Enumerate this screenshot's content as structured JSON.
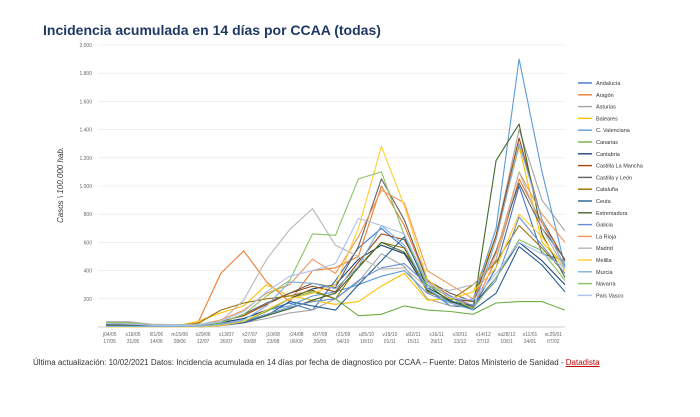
{
  "title": "Incidencia acumulada en 14 días por CCAA (todas)",
  "footnote": {
    "text": "Última actualización: 10/02/2021 Datos: Incidencia acumulada en 14 días por fecha de diagnostico por CCAA – Fuente: Datos Ministerio de Sanidad -",
    "source": "Datadista"
  },
  "chart_data": {
    "type": "line",
    "ylabel": "Casos \\ 100.000 hab.",
    "ylim": [
      0,
      2000
    ],
    "yticks": [
      "",
      "200",
      "400",
      "600",
      "800",
      "1.000",
      "1.200",
      "1.400",
      "1.600",
      "1.800",
      "2.000"
    ],
    "x_top": [
      "j04/05",
      "x18/05",
      "l01/06",
      "m15/06",
      "x29/06",
      "x13/07",
      "x27/07",
      "j10/08",
      "r24/08",
      "s07/09",
      "r21/09",
      "u05/10",
      "v19/10",
      "u02/11",
      "x16/11",
      "v30/11",
      "x14/12",
      "xa28/12",
      "x11/01",
      "xc25/01"
    ],
    "x_bottom": [
      "17/05",
      "31/05",
      "14/06",
      "28/06",
      "12/07",
      "26/07",
      "09/08",
      "23/08",
      "06/09",
      "20/09",
      "04/10",
      "18/10",
      "01/11",
      "15/11",
      "29/11",
      "13/12",
      "27/12",
      "10/01",
      "24/01",
      "07/02"
    ],
    "legend_position": "right",
    "series": [
      {
        "name": "Andalucía",
        "color": "#4472c4",
        "values": [
          22,
          22,
          10,
          8,
          14,
          30,
          60,
          120,
          170,
          120,
          330,
          560,
          700,
          560,
          270,
          150,
          140,
          420,
          1000,
          520,
          470
        ]
      },
      {
        "name": "Aragón",
        "color": "#ed7d31",
        "values": [
          24,
          32,
          10,
          10,
          28,
          380,
          540,
          320,
          180,
          400,
          420,
          500,
          1000,
          720,
          330,
          220,
          140,
          480,
          1050,
          740,
          430
        ]
      },
      {
        "name": "Asturias",
        "color": "#a5a5a5",
        "values": [
          12,
          10,
          5,
          4,
          5,
          20,
          30,
          60,
          100,
          120,
          200,
          320,
          520,
          430,
          200,
          150,
          160,
          650,
          1400,
          900,
          680
        ]
      },
      {
        "name": "Baleares",
        "color": "#ffc000",
        "values": [
          12,
          10,
          5,
          5,
          40,
          100,
          150,
          300,
          220,
          190,
          160,
          180,
          290,
          380,
          190,
          200,
          250,
          640,
          1280,
          600,
          440
        ]
      },
      {
        "name": "C. Valenciana",
        "color": "#5b9bd5",
        "values": [
          10,
          10,
          5,
          4,
          8,
          30,
          60,
          120,
          150,
          220,
          250,
          300,
          360,
          400,
          240,
          170,
          200,
          700,
          1900,
          1100,
          430
        ]
      },
      {
        "name": "Canarias",
        "color": "#70ad47",
        "values": [
          8,
          6,
          4,
          3,
          5,
          20,
          40,
          110,
          200,
          250,
          200,
          80,
          90,
          150,
          120,
          110,
          90,
          170,
          180,
          180,
          120
        ]
      },
      {
        "name": "Cantabria",
        "color": "#264478",
        "values": [
          14,
          12,
          6,
          5,
          8,
          30,
          60,
          120,
          200,
          270,
          300,
          480,
          580,
          520,
          260,
          180,
          150,
          350,
          600,
          470,
          300
        ]
      },
      {
        "name": "Castilla La Mancha",
        "color": "#9e480e",
        "values": [
          30,
          28,
          14,
          10,
          14,
          40,
          80,
          160,
          240,
          290,
          250,
          460,
          660,
          620,
          320,
          200,
          180,
          650,
          1340,
          760,
          470
        ]
      },
      {
        "name": "Castilla y León",
        "color": "#636363",
        "values": [
          30,
          28,
          14,
          10,
          14,
          30,
          90,
          170,
          240,
          310,
          280,
          570,
          1050,
          760,
          330,
          240,
          180,
          540,
          1020,
          700,
          480
        ]
      },
      {
        "name": "Cataluña",
        "color": "#997300",
        "values": [
          32,
          30,
          16,
          12,
          24,
          120,
          170,
          200,
          220,
          260,
          200,
          430,
          600,
          560,
          250,
          190,
          300,
          460,
          720,
          560,
          380
        ]
      },
      {
        "name": "Ceuta",
        "color": "#255e91",
        "values": [
          0,
          0,
          0,
          0,
          0,
          10,
          30,
          80,
          180,
          150,
          120,
          300,
          470,
          640,
          280,
          190,
          120,
          240,
          570,
          440,
          250
        ]
      },
      {
        "name": "Extremadura",
        "color": "#43682b",
        "values": [
          14,
          12,
          6,
          4,
          6,
          20,
          40,
          80,
          130,
          190,
          240,
          420,
          600,
          530,
          300,
          180,
          130,
          1180,
          1440,
          660,
          350
        ]
      },
      {
        "name": "Galicia",
        "color": "#698ed0",
        "values": [
          6,
          5,
          3,
          3,
          5,
          20,
          40,
          90,
          140,
          180,
          200,
          330,
          420,
          450,
          300,
          220,
          150,
          330,
          780,
          580,
          380
        ]
      },
      {
        "name": "La Rioja",
        "color": "#f1975a",
        "values": [
          34,
          30,
          14,
          10,
          14,
          50,
          120,
          240,
          300,
          480,
          380,
          640,
          970,
          880,
          400,
          300,
          200,
          520,
          1100,
          800,
          600
        ]
      },
      {
        "name": "Madrid",
        "color": "#b7b7b7",
        "values": [
          40,
          38,
          20,
          16,
          20,
          40,
          190,
          480,
          690,
          840,
          580,
          500,
          410,
          420,
          280,
          260,
          300,
          480,
          1100,
          700,
          410
        ]
      },
      {
        "name": "Melilla",
        "color": "#ffcd33",
        "values": [
          0,
          0,
          0,
          0,
          0,
          10,
          40,
          120,
          200,
          240,
          300,
          700,
          1280,
          860,
          340,
          200,
          250,
          420,
          800,
          640,
          400
        ]
      },
      {
        "name": "Murcia",
        "color": "#7cafdd",
        "values": [
          4,
          4,
          3,
          3,
          5,
          20,
          50,
          150,
          320,
          310,
          270,
          430,
          720,
          580,
          270,
          170,
          120,
          620,
          1300,
          760,
          420
        ]
      },
      {
        "name": "Navarra",
        "color": "#8cc168",
        "values": [
          32,
          30,
          14,
          10,
          14,
          30,
          90,
          220,
          330,
          660,
          650,
          1050,
          1100,
          650,
          300,
          210,
          130,
          350,
          620,
          540,
          330
        ]
      },
      {
        "name": "País Vasco",
        "color": "#adc1ee",
        "values": [
          24,
          22,
          12,
          10,
          12,
          40,
          110,
          250,
          360,
          400,
          450,
          770,
          720,
          660,
          320,
          210,
          190,
          380,
          600,
          520,
          420
        ]
      }
    ]
  }
}
